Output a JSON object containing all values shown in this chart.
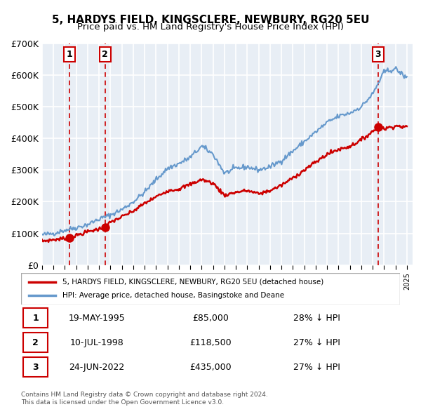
{
  "title": "5, HARDYS FIELD, KINGSCLERE, NEWBURY, RG20 5EU",
  "subtitle": "Price paid vs. HM Land Registry's House Price Index (HPI)",
  "xlim": [
    1993.0,
    2025.5
  ],
  "ylim": [
    0,
    700000
  ],
  "yticks": [
    0,
    100000,
    200000,
    300000,
    400000,
    500000,
    600000,
    700000
  ],
  "ytick_labels": [
    "£0",
    "£100K",
    "£200K",
    "£300K",
    "£400K",
    "£500K",
    "£600K",
    "£700K"
  ],
  "property_color": "#cc0000",
  "hpi_color": "#6699cc",
  "sale_points": [
    {
      "year": 1995.38,
      "price": 85000,
      "label": "1"
    },
    {
      "year": 1998.52,
      "price": 118500,
      "label": "2"
    },
    {
      "year": 2022.48,
      "price": 435000,
      "label": "3"
    }
  ],
  "transaction_rows": [
    {
      "num": "1",
      "date": "19-MAY-1995",
      "price": "£85,000",
      "hpi": "28% ↓ HPI"
    },
    {
      "num": "2",
      "date": "10-JUL-1998",
      "price": "£118,500",
      "hpi": "27% ↓ HPI"
    },
    {
      "num": "3",
      "date": "24-JUN-2022",
      "price": "£435,000",
      "hpi": "27% ↓ HPI"
    }
  ],
  "legend_property_label": "5, HARDYS FIELD, KINGSCLERE, NEWBURY, RG20 5EU (detached house)",
  "legend_hpi_label": "HPI: Average price, detached house, Basingstoke and Deane",
  "footer1": "Contains HM Land Registry data © Crown copyright and database right 2024.",
  "footer2": "This data is licensed under the Open Government Licence v3.0."
}
